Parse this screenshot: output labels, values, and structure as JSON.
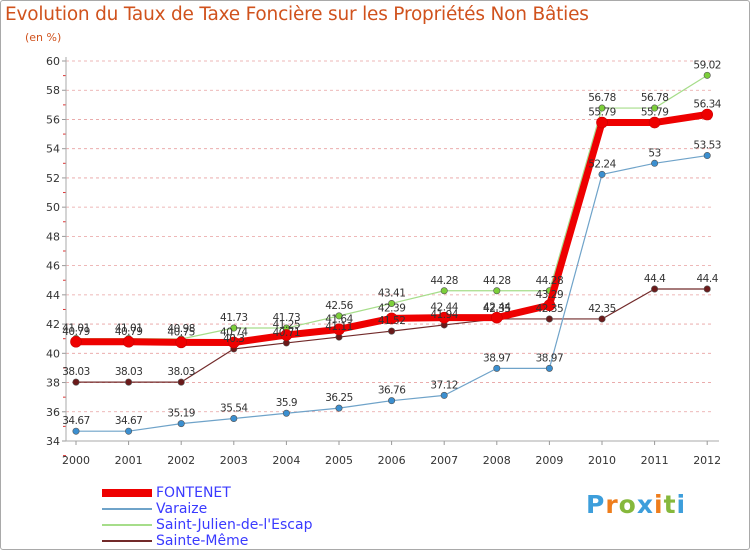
{
  "title": "Evolution du Taux de Taxe Foncière sur les Propriétés Non Bâties",
  "unit_label": "(en %)",
  "logo": {
    "text": "Proxiti",
    "letters": [
      "P",
      "r",
      "o",
      "x",
      "i",
      "t",
      "i"
    ],
    "colors": [
      "#3d9edb",
      "#ee7d1c",
      "#86b83c",
      "#3d9edb",
      "#ee7d1c",
      "#86b83c",
      "#3d9edb"
    ]
  },
  "chart_data": {
    "type": "line",
    "title": "Evolution du Taux de Taxe Foncière sur les Propriétés Non Bâties",
    "ylabel": "(en %)",
    "xlabel": "",
    "ylim": [
      34,
      60
    ],
    "yticks": [
      34,
      36,
      38,
      40,
      42,
      44,
      46,
      48,
      50,
      52,
      54,
      56,
      58,
      60
    ],
    "x": [
      "2000",
      "2001",
      "2002",
      "2003",
      "2004",
      "2005",
      "2006",
      "2007",
      "2008",
      "2009",
      "2010",
      "2011",
      "2012"
    ],
    "series": [
      {
        "name": "Sainte-Même",
        "color": "#722a2a",
        "marker": "#6b1a1a",
        "width": 1.2,
        "values": [
          38.03,
          38.03,
          38.03,
          40.3,
          40.71,
          41.11,
          41.52,
          41.94,
          42.35,
          42.35,
          42.35,
          44.4,
          44.4
        ],
        "labels": [
          "38.03",
          "38.03",
          "38.03",
          "40.3",
          "40.71",
          "41.11",
          "41.52",
          "41.94",
          "42.35",
          "42.35",
          "42.35",
          "44.4",
          "44.4"
        ]
      },
      {
        "name": "Varaize",
        "color": "#6fa3c9",
        "marker": "#3b8fd0",
        "width": 1.2,
        "values": [
          34.67,
          34.67,
          35.19,
          35.54,
          35.9,
          36.25,
          36.76,
          37.12,
          38.97,
          38.97,
          52.24,
          53,
          53.53
        ],
        "labels": [
          "34.67",
          "34.67",
          "35.19",
          "35.54",
          "35.9",
          "36.25",
          "36.76",
          "37.12",
          "38.97",
          "38.97",
          "52.24",
          "53",
          "53.53"
        ]
      },
      {
        "name": "Saint-Julien-de-l'Escap",
        "color": "#a6dd8a",
        "marker": "#7ccf3a",
        "width": 1.2,
        "values": [
          41.01,
          41.01,
          40.98,
          41.73,
          41.73,
          42.56,
          43.41,
          44.28,
          44.28,
          44.28,
          56.78,
          56.78,
          59.02
        ],
        "labels": [
          "41.01",
          "41.01",
          "40.98",
          "41.73",
          "41.73",
          "42.56",
          "43.41",
          "44.28",
          "44.28",
          "44.28",
          "56.78",
          "56.78",
          "59.02"
        ]
      },
      {
        "name": "FONTENET",
        "color": "#ee0000",
        "marker": "#ee0000",
        "width": 7,
        "values": [
          40.79,
          40.79,
          40.75,
          40.74,
          41.25,
          41.64,
          42.39,
          42.44,
          42.44,
          43.29,
          55.79,
          55.79,
          56.34
        ],
        "labels": [
          "40.79",
          "40.79",
          "40.75",
          "40.74",
          "41.25",
          "41.64",
          "42.39",
          "42.44",
          "42.44",
          "43.29",
          "55.79",
          "55.79",
          "56.34"
        ]
      }
    ],
    "legend": [
      "FONTENET",
      "Varaize",
      "Saint-Julien-de-l'Escap",
      "Sainte-Même"
    ],
    "legend_position": "bottom-left",
    "grid": "horizontal dashed red"
  }
}
